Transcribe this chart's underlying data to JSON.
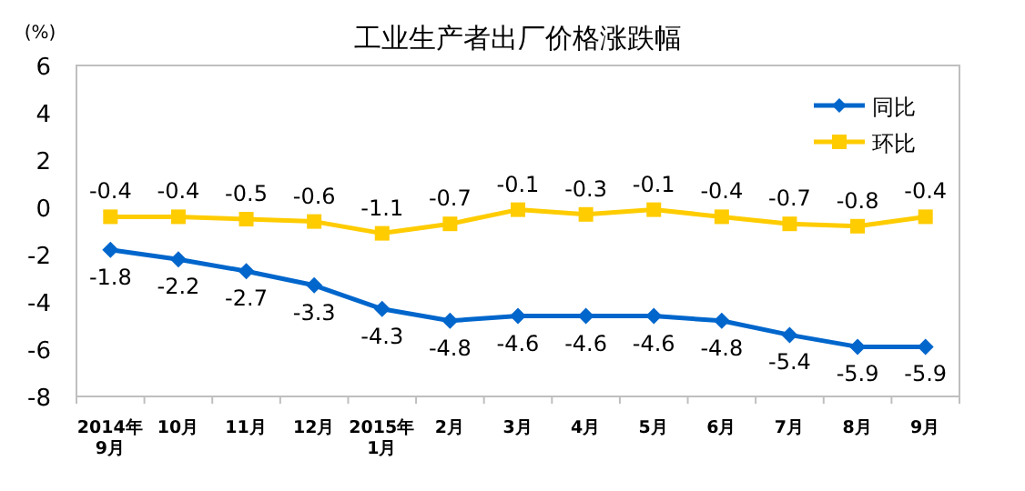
{
  "chart_data": {
    "type": "line",
    "title": "工业生产者出厂价格涨跌幅",
    "ylabel": "(%)",
    "categories": [
      "2014年\n9月",
      "10月",
      "11月",
      "12月",
      "2015年\n1月",
      "2月",
      "3月",
      "4月",
      "5月",
      "6月",
      "7月",
      "8月",
      "9月"
    ],
    "series": [
      {
        "name": "同比",
        "color": "#0066cc",
        "marker": "diamond",
        "values": [
          -1.8,
          -2.2,
          -2.7,
          -3.3,
          -4.3,
          -4.8,
          -4.6,
          -4.6,
          -4.6,
          -4.8,
          -5.4,
          -5.9,
          -5.9
        ]
      },
      {
        "name": "环比",
        "color": "#ffcc00",
        "marker": "square",
        "values": [
          -0.4,
          -0.4,
          -0.5,
          -0.6,
          -1.1,
          -0.7,
          -0.1,
          -0.3,
          -0.1,
          -0.4,
          -0.7,
          -0.8,
          -0.4
        ]
      }
    ],
    "ylim": [
      -8,
      6
    ],
    "yticks": [
      -8,
      -6,
      -4,
      -2,
      0,
      2,
      4,
      6
    ],
    "grid": false,
    "legend": "top right",
    "data_labels": true,
    "line_style": "solid"
  }
}
